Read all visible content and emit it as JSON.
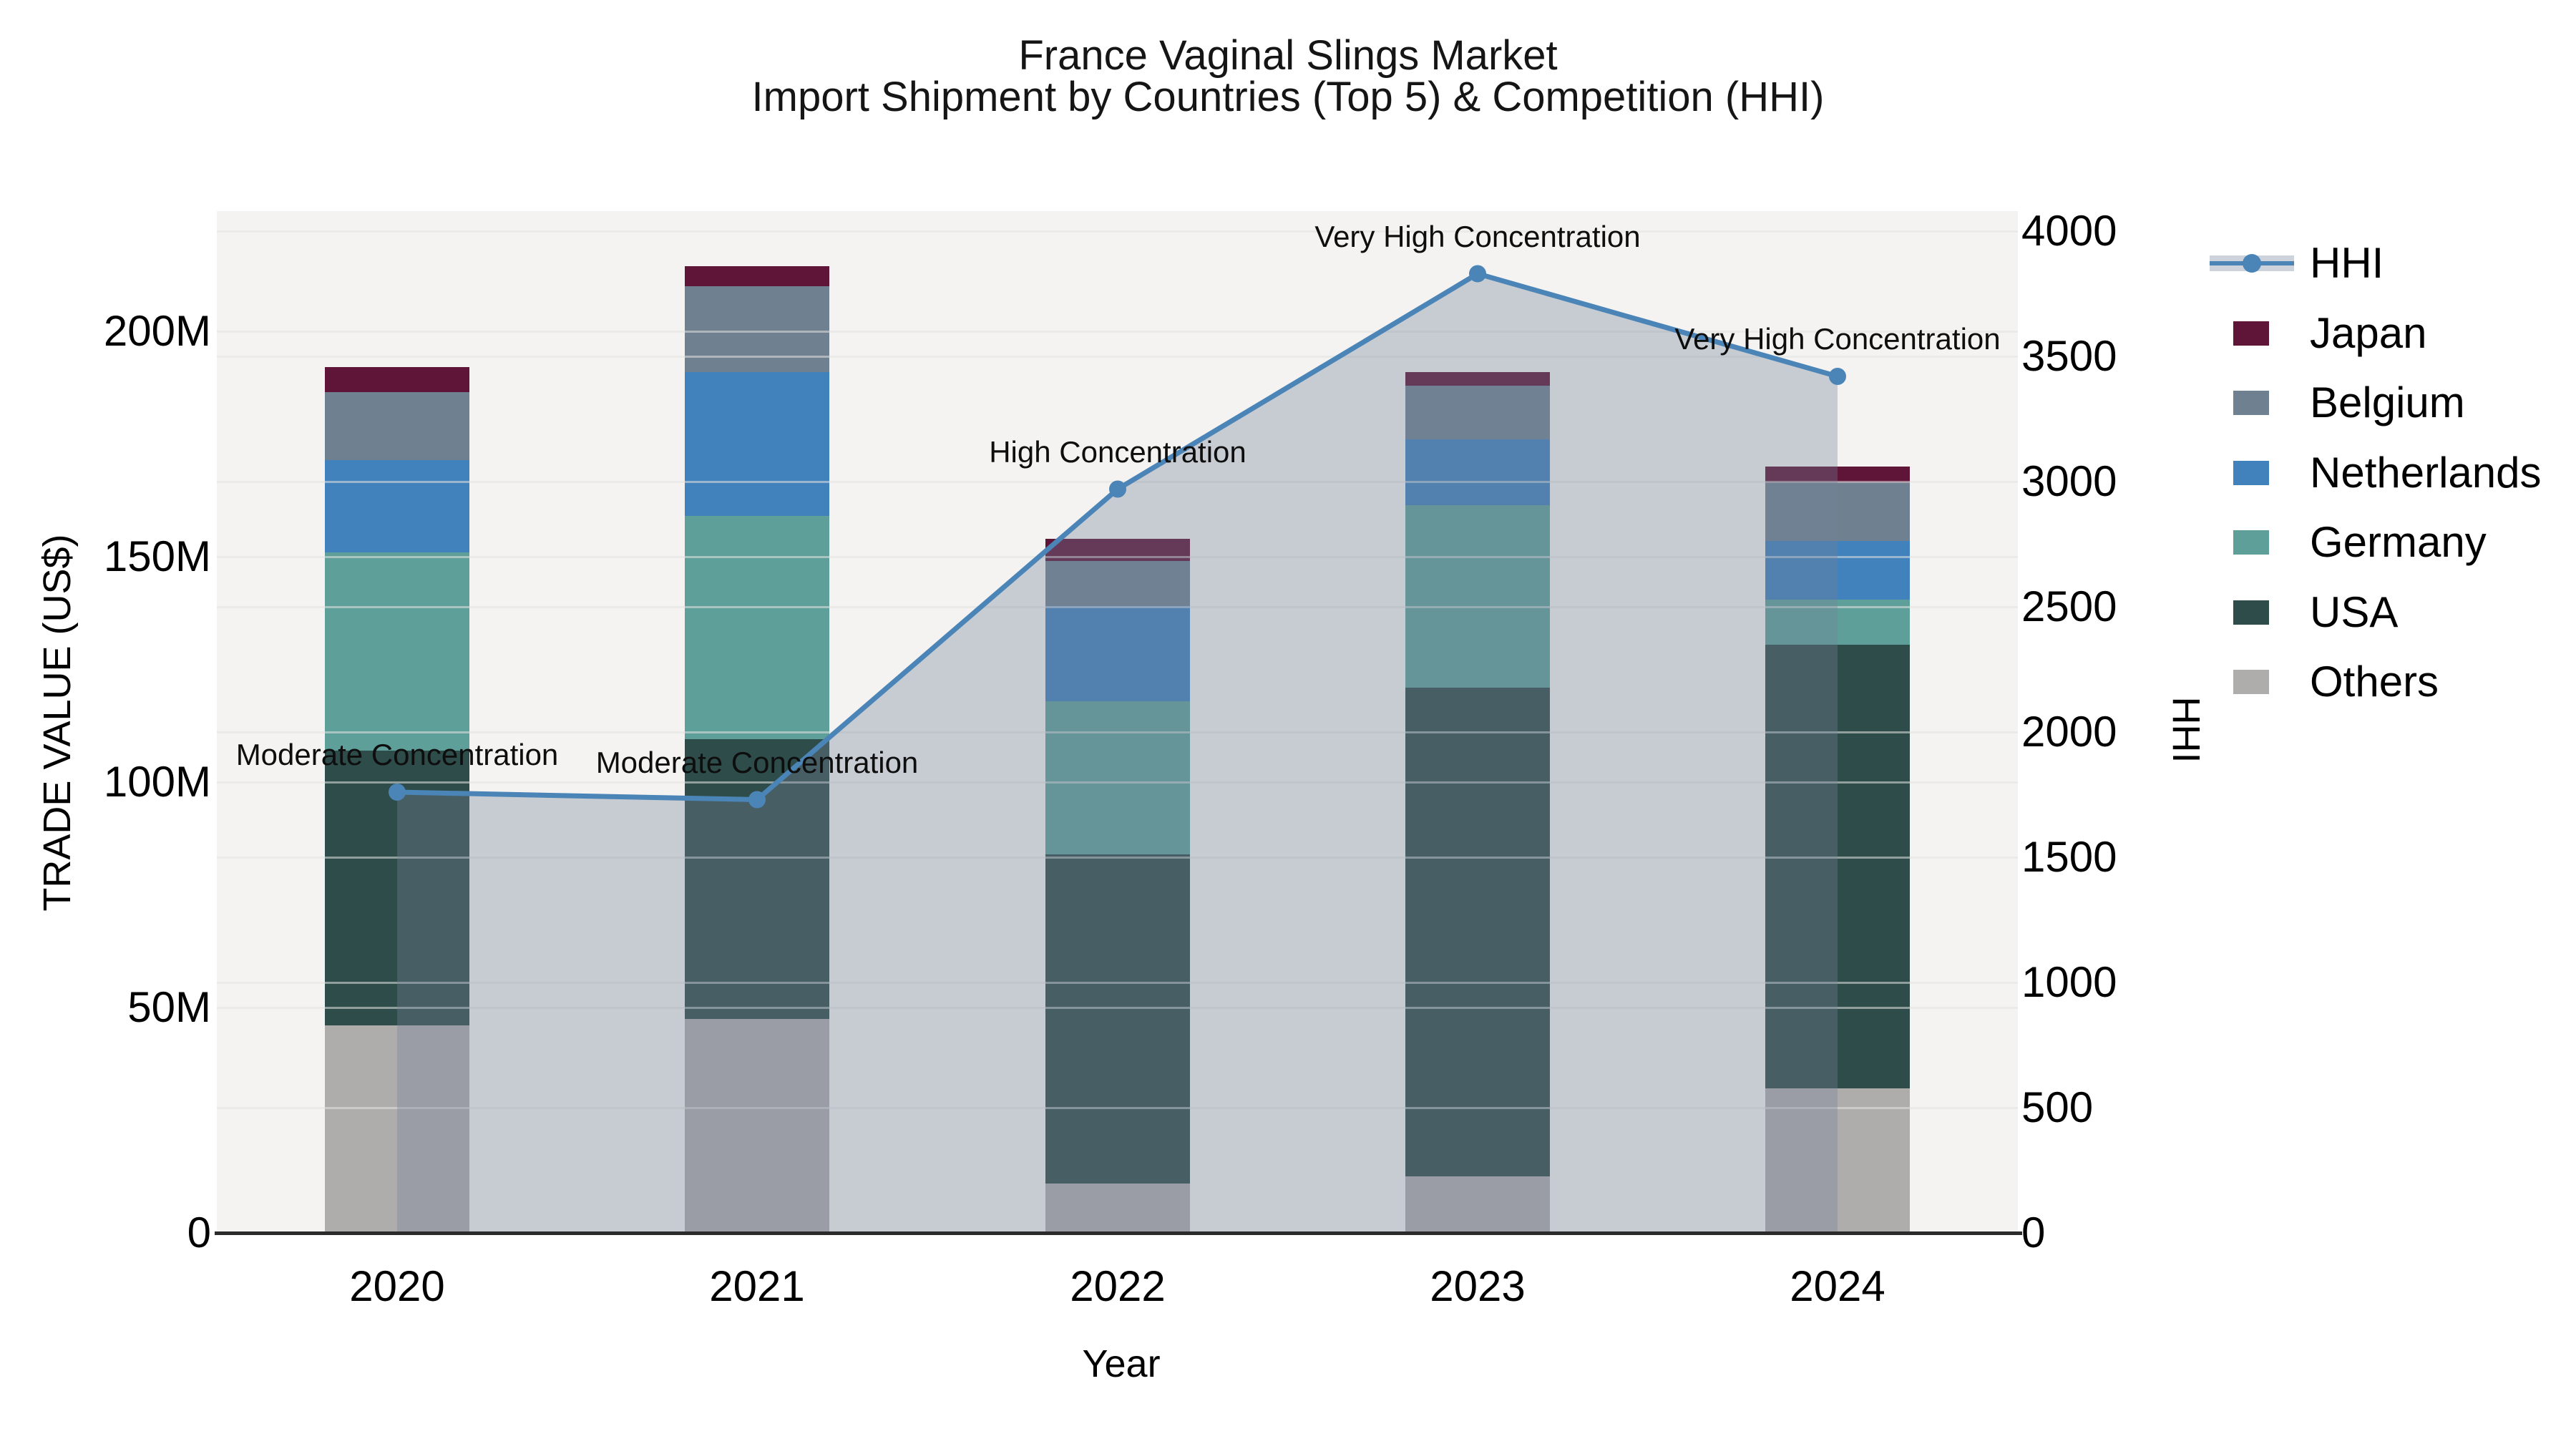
{
  "title": {
    "line1": "France Vaginal Slings Market",
    "line2": "Import Shipment by Countries (Top 5) & Competition (HHI)"
  },
  "axes": {
    "x": {
      "label": "Year",
      "categories": [
        "2020",
        "2021",
        "2022",
        "2023",
        "2024"
      ]
    },
    "y_left": {
      "label": "TRADE VALUE (US$)",
      "tick_labels": [
        "0",
        "50M",
        "100M",
        "150M",
        "200M"
      ],
      "tick_values_millions": [
        0,
        50,
        100,
        150,
        200
      ]
    },
    "y_right": {
      "label": "HHI",
      "tick_labels": [
        "0",
        "500",
        "1000",
        "1500",
        "2000",
        "2500",
        "3000",
        "3500",
        "4000"
      ],
      "tick_values": [
        0,
        500,
        1000,
        1500,
        2000,
        2500,
        3000,
        3500,
        4000
      ]
    }
  },
  "chart_data": {
    "type": "stacked-bar+line",
    "title": "France Vaginal Slings Market — Import Shipment by Countries (Top 5) & Competition (HHI)",
    "categories": [
      "2020",
      "2021",
      "2022",
      "2023",
      "2024"
    ],
    "bar_value_unit": "million US$",
    "ylim_left_millions": [
      0,
      226
    ],
    "ylim_right_hhi": [
      0,
      4000
    ],
    "grid": true,
    "legend_position": "right",
    "series": [
      {
        "name": "Others",
        "color": "#afadac",
        "values": [
          46,
          47.5,
          11,
          12.5,
          32
        ]
      },
      {
        "name": "USA",
        "color": "#2e4c49",
        "values": [
          61,
          62,
          73,
          108.5,
          98.5
        ]
      },
      {
        "name": "Germany",
        "color": "#5f9f9a",
        "values": [
          44,
          49.5,
          34,
          40.5,
          10
        ]
      },
      {
        "name": "Netherlands",
        "color": "#4181bc",
        "values": [
          20.5,
          32,
          21,
          14.5,
          13
        ]
      },
      {
        "name": "Belgium",
        "color": "#6f8191",
        "values": [
          15,
          19,
          10,
          12,
          13
        ]
      },
      {
        "name": "Japan",
        "color": "#5f1538",
        "values": [
          5.5,
          4.5,
          5,
          3,
          3.5
        ]
      }
    ],
    "bar_totals_millions": [
      192,
      214.5,
      154,
      191,
      170.5
    ],
    "line": {
      "name": "HHI",
      "color": "#4b84b6",
      "area_fill": "rgba(114,129,153,0.35)",
      "values": [
        1760,
        1730,
        2970,
        3830,
        3420
      ]
    },
    "annotations": [
      {
        "category": "2020",
        "text": "Moderate Concentration"
      },
      {
        "category": "2021",
        "text": "Moderate Concentration"
      },
      {
        "category": "2022",
        "text": "High Concentration"
      },
      {
        "category": "2023",
        "text": "Very High Concentration"
      },
      {
        "category": "2024",
        "text": "Very High Concentration"
      }
    ]
  },
  "legend": {
    "items": [
      {
        "label": "HHI",
        "type": "line",
        "color": "#4b84b6"
      },
      {
        "label": "Japan",
        "type": "box",
        "color": "#5f1538"
      },
      {
        "label": "Belgium",
        "type": "box",
        "color": "#6f8191"
      },
      {
        "label": "Netherlands",
        "type": "box",
        "color": "#4181bc"
      },
      {
        "label": "Germany",
        "type": "box",
        "color": "#5f9f9a"
      },
      {
        "label": "USA",
        "type": "box",
        "color": "#2e4c49"
      },
      {
        "label": "Others",
        "type": "box",
        "color": "#afadac"
      }
    ]
  },
  "colors": {
    "plot_background": "#f4f3f2",
    "figure_background": "#ffffff",
    "gridline": "#e2e1e0",
    "axis_spine": "#2b2b2b",
    "hhi_line": "#4b84b6",
    "hhi_area": "rgba(114,129,153,0.35)"
  }
}
